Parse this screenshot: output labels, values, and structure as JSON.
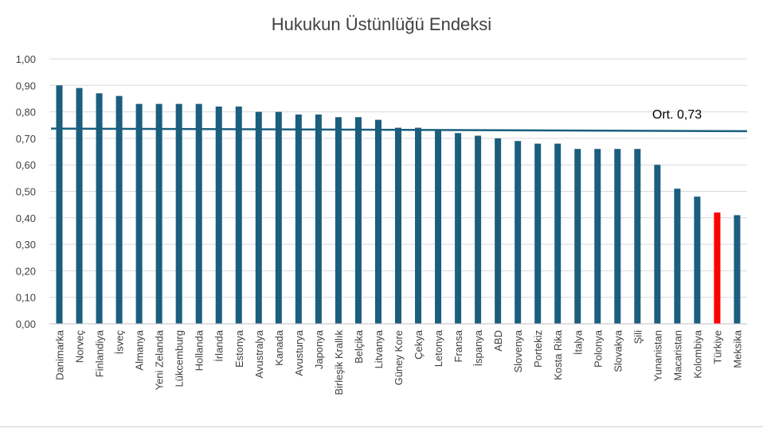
{
  "chart_data": {
    "type": "bar",
    "title": "Hukukun Üstünlüğü Endeksi",
    "xlabel": "",
    "ylabel": "",
    "ylim": [
      0,
      1.0
    ],
    "yticks": [
      "0,00",
      "0,10",
      "0,20",
      "0,30",
      "0,40",
      "0,50",
      "0,60",
      "0,70",
      "0,80",
      "0,90",
      "1,00"
    ],
    "grid": true,
    "categories": [
      "Danimarka",
      "Norveç",
      "Finlandiya",
      "İsveç",
      "Almanya",
      "Yeni Zelanda",
      "Lükсemburg",
      "Hollanda",
      "İrlanda",
      "Estonya",
      "Avustralya",
      "Kanada",
      "Avusturya",
      "Japonya",
      "Birleşik Krallık",
      "Belçika",
      "Litvanya",
      "Güney Kore",
      "Çekya",
      "Letonya",
      "Fransa",
      "İspanya",
      "ABD",
      "Slovenya",
      "Portekiz",
      "Kosta Rika",
      "İtalya",
      "Polonya",
      "Slovakya",
      "Şili",
      "Yunanistan",
      "Macaristan",
      "Kolombiya",
      "Türkiye",
      "Meksika"
    ],
    "values": [
      0.9,
      0.89,
      0.87,
      0.86,
      0.83,
      0.83,
      0.83,
      0.83,
      0.82,
      0.82,
      0.8,
      0.8,
      0.79,
      0.79,
      0.78,
      0.78,
      0.77,
      0.74,
      0.74,
      0.73,
      0.72,
      0.71,
      0.7,
      0.69,
      0.68,
      0.68,
      0.66,
      0.66,
      0.66,
      0.66,
      0.6,
      0.51,
      0.48,
      0.42,
      0.41
    ],
    "highlight_category": "Türkiye",
    "colors": {
      "bar": "#1b5e7e",
      "highlight": "#ff0000",
      "average_line": "#1b5e7e",
      "grid": "#d9d9d9",
      "axis_text": "#404040"
    },
    "average": {
      "label": "Ort. 0,73",
      "start_value": 0.737,
      "end_value": 0.727
    }
  }
}
